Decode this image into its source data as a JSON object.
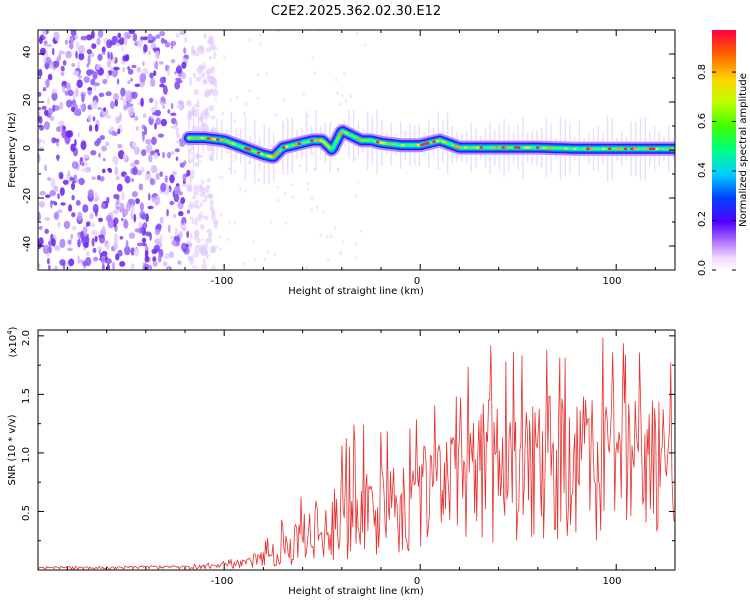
{
  "chart_data": [
    {
      "type": "heatmap",
      "title": "C2E2.2025.362.02.30.E12",
      "xlabel": "Height of straight line (km)",
      "ylabel": "Frequency (Hz)",
      "xlim": [
        -195,
        130
      ],
      "ylim": [
        -50,
        50
      ],
      "xticks": [
        -100,
        0,
        100
      ],
      "yticks": [
        -40,
        -20,
        0,
        20,
        40
      ],
      "noise_region_x": [
        -195,
        -100
      ],
      "signal_onset_x": -118,
      "ridge": {
        "x": [
          -118,
          -110,
          -100,
          -90,
          -80,
          -75,
          -70,
          -65,
          -60,
          -55,
          -50,
          -45,
          -40,
          -35,
          -30,
          -25,
          -20,
          -10,
          0,
          10,
          20,
          40,
          60,
          80,
          100,
          130
        ],
        "freq": [
          5,
          5,
          4,
          1,
          -2,
          -3,
          1,
          2,
          3,
          4,
          4,
          0,
          8,
          6,
          4,
          4,
          3,
          2,
          2,
          4,
          1,
          1,
          1,
          0.5,
          0.5,
          0.5
        ]
      },
      "colorbar": {
        "label": "Normalized spectral amplitude",
        "ticks": [
          "0.0",
          "0.2",
          "0.4",
          "0.6",
          "0.8"
        ],
        "range": [
          0,
          0.97
        ]
      }
    },
    {
      "type": "line",
      "xlabel": "Height of straight line (km)",
      "ylabel": "SNR (10 * v/v)",
      "scale_label": "(x10",
      "scale_exp": "4",
      "scale_close": ")",
      "xlim": [
        -195,
        130
      ],
      "ylim": [
        0,
        2.05
      ],
      "xticks": [
        -100,
        0,
        100
      ],
      "yticks": [
        "0.5",
        "1.0",
        "1.5",
        "2.0"
      ],
      "series": [
        {
          "name": "SNR",
          "color": "#e8302f",
          "envelope": {
            "x": [
              -195,
              -120,
              -100,
              -90,
              -80,
              -70,
              -60,
              -50,
              -40,
              -30,
              -20,
              -10,
              0,
              10,
              20,
              30,
              40,
              50,
              60,
              80,
              100,
              130
            ],
            "mean": [
              0.02,
              0.03,
              0.04,
              0.06,
              0.1,
              0.15,
              0.22,
              0.3,
              0.35,
              0.42,
              0.5,
              0.6,
              0.7,
              0.75,
              0.8,
              0.9,
              0.95,
              1.0,
              1.0,
              1.0,
              1.0,
              0.95
            ],
            "peak": [
              0.03,
              0.04,
              0.08,
              0.14,
              0.25,
              0.45,
              0.7,
              1.1,
              1.2,
              1.3,
              1.25,
              1.35,
              1.4,
              1.5,
              1.55,
              2.0,
              2.0,
              2.0,
              2.0,
              1.95,
              2.05,
              1.95
            ]
          }
        }
      ]
    }
  ]
}
